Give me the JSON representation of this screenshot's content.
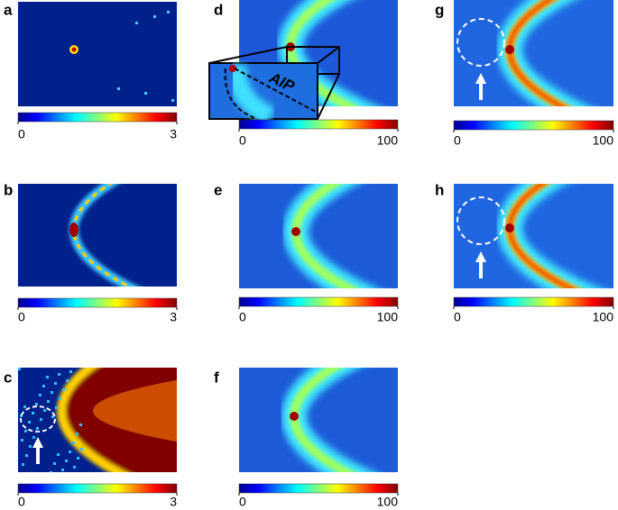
{
  "panels": [
    {
      "label": "a",
      "lim": [
        0,
        3
      ],
      "ticks": [
        0,
        3
      ]
    },
    {
      "label": "b",
      "lim": [
        0,
        3
      ],
      "ticks": [
        0,
        3
      ]
    },
    {
      "label": "c",
      "lim": [
        0,
        3
      ],
      "ticks": [
        0,
        3
      ]
    },
    {
      "label": "d",
      "lim": [
        0,
        100
      ],
      "ticks": [
        0,
        100
      ]
    },
    {
      "label": "e",
      "lim": [
        0,
        100
      ],
      "ticks": [
        0,
        100
      ]
    },
    {
      "label": "f",
      "lim": [
        0,
        100
      ],
      "ticks": [
        0,
        100
      ]
    },
    {
      "label": "g",
      "lim": [
        0,
        100
      ],
      "ticks": [
        0,
        100
      ]
    },
    {
      "label": "h",
      "lim": [
        0,
        100
      ],
      "ticks": [
        0,
        100
      ]
    }
  ],
  "inset_label": "AIP"
}
